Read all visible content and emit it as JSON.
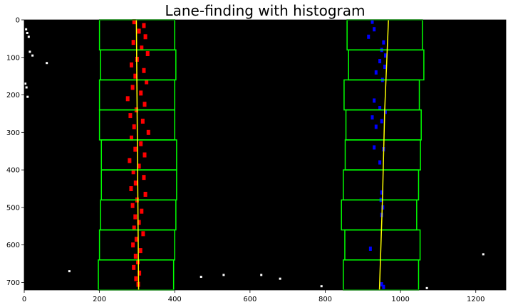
{
  "chart_data": {
    "type": "scatter",
    "title": "Lane-finding with histogram",
    "xlabel": "",
    "ylabel": "",
    "xlim": [
      0,
      1280
    ],
    "ylim": [
      720,
      0
    ],
    "y_inverted": true,
    "grid": false,
    "background_color": "#000000",
    "x_ticks": [
      0,
      200,
      400,
      600,
      800,
      1000,
      1200
    ],
    "y_ticks": [
      0,
      100,
      200,
      300,
      400,
      500,
      600,
      700
    ],
    "colors": {
      "left_lane": "#ff0000",
      "right_lane": "#0000ff",
      "windows": "#00ff00",
      "fit_line": "#ffff00",
      "noise": "#ffffff"
    },
    "windows": [
      {
        "lane": "left",
        "x0": 200,
        "x1": 400,
        "y0": 0,
        "y1": 80
      },
      {
        "lane": "left",
        "x0": 203,
        "x1": 403,
        "y0": 80,
        "y1": 160
      },
      {
        "lane": "left",
        "x0": 200,
        "x1": 400,
        "y0": 160,
        "y1": 240
      },
      {
        "lane": "left",
        "x0": 200,
        "x1": 400,
        "y0": 240,
        "y1": 320
      },
      {
        "lane": "left",
        "x0": 205,
        "x1": 405,
        "y0": 320,
        "y1": 400
      },
      {
        "lane": "left",
        "x0": 205,
        "x1": 405,
        "y0": 400,
        "y1": 480
      },
      {
        "lane": "left",
        "x0": 203,
        "x1": 403,
        "y0": 480,
        "y1": 560
      },
      {
        "lane": "left",
        "x0": 200,
        "x1": 400,
        "y0": 560,
        "y1": 640
      },
      {
        "lane": "left",
        "x0": 197,
        "x1": 397,
        "y0": 640,
        "y1": 720
      },
      {
        "lane": "right",
        "x0": 858,
        "x1": 1058,
        "y0": 0,
        "y1": 80
      },
      {
        "lane": "right",
        "x0": 862,
        "x1": 1062,
        "y0": 80,
        "y1": 160
      },
      {
        "lane": "right",
        "x0": 850,
        "x1": 1050,
        "y0": 160,
        "y1": 240
      },
      {
        "lane": "right",
        "x0": 855,
        "x1": 1055,
        "y0": 240,
        "y1": 320
      },
      {
        "lane": "right",
        "x0": 853,
        "x1": 1053,
        "y0": 320,
        "y1": 400
      },
      {
        "lane": "right",
        "x0": 848,
        "x1": 1048,
        "y0": 400,
        "y1": 480
      },
      {
        "lane": "right",
        "x0": 843,
        "x1": 1043,
        "y0": 480,
        "y1": 560
      },
      {
        "lane": "right",
        "x0": 852,
        "x1": 1052,
        "y0": 560,
        "y1": 640
      },
      {
        "lane": "right",
        "x0": 848,
        "x1": 1048,
        "y0": 640,
        "y1": 720
      }
    ],
    "fit_lines": [
      {
        "lane": "left",
        "x": [
          298,
          299,
          300,
          301,
          302,
          303,
          304
        ],
        "y": [
          0,
          120,
          240,
          360,
          480,
          600,
          720
        ]
      },
      {
        "lane": "right",
        "x": [
          968,
          963,
          958,
          955,
          952,
          948,
          944
        ],
        "y": [
          0,
          120,
          240,
          360,
          480,
          600,
          720
        ]
      }
    ],
    "left_lane_pixels": [
      {
        "x": 292,
        "y": 5
      },
      {
        "x": 318,
        "y": 15
      },
      {
        "x": 305,
        "y": 30
      },
      {
        "x": 322,
        "y": 45
      },
      {
        "x": 290,
        "y": 60
      },
      {
        "x": 312,
        "y": 75
      },
      {
        "x": 328,
        "y": 90
      },
      {
        "x": 300,
        "y": 105
      },
      {
        "x": 285,
        "y": 120
      },
      {
        "x": 318,
        "y": 135
      },
      {
        "x": 295,
        "y": 150
      },
      {
        "x": 325,
        "y": 165
      },
      {
        "x": 288,
        "y": 180
      },
      {
        "x": 310,
        "y": 195
      },
      {
        "x": 275,
        "y": 210
      },
      {
        "x": 320,
        "y": 225
      },
      {
        "x": 298,
        "y": 240
      },
      {
        "x": 282,
        "y": 255
      },
      {
        "x": 315,
        "y": 270
      },
      {
        "x": 292,
        "y": 285
      },
      {
        "x": 330,
        "y": 300
      },
      {
        "x": 285,
        "y": 315
      },
      {
        "x": 310,
        "y": 330
      },
      {
        "x": 295,
        "y": 345
      },
      {
        "x": 320,
        "y": 360
      },
      {
        "x": 280,
        "y": 375
      },
      {
        "x": 305,
        "y": 390
      },
      {
        "x": 290,
        "y": 405
      },
      {
        "x": 318,
        "y": 420
      },
      {
        "x": 296,
        "y": 435
      },
      {
        "x": 284,
        "y": 450
      },
      {
        "x": 322,
        "y": 465
      },
      {
        "x": 300,
        "y": 480
      },
      {
        "x": 288,
        "y": 495
      },
      {
        "x": 312,
        "y": 510
      },
      {
        "x": 295,
        "y": 525
      },
      {
        "x": 305,
        "y": 540
      },
      {
        "x": 292,
        "y": 555
      },
      {
        "x": 316,
        "y": 570
      },
      {
        "x": 298,
        "y": 585
      },
      {
        "x": 289,
        "y": 600
      },
      {
        "x": 309,
        "y": 615
      },
      {
        "x": 296,
        "y": 630
      },
      {
        "x": 302,
        "y": 645
      },
      {
        "x": 291,
        "y": 660
      },
      {
        "x": 306,
        "y": 675
      },
      {
        "x": 297,
        "y": 690
      },
      {
        "x": 303,
        "y": 705
      }
    ],
    "right_lane_pixels": [
      {
        "x": 925,
        "y": 5
      },
      {
        "x": 930,
        "y": 25
      },
      {
        "x": 915,
        "y": 45
      },
      {
        "x": 955,
        "y": 60
      },
      {
        "x": 950,
        "y": 80
      },
      {
        "x": 960,
        "y": 95
      },
      {
        "x": 945,
        "y": 110
      },
      {
        "x": 958,
        "y": 125
      },
      {
        "x": 935,
        "y": 140
      },
      {
        "x": 952,
        "y": 160
      },
      {
        "x": 930,
        "y": 215
      },
      {
        "x": 945,
        "y": 235
      },
      {
        "x": 960,
        "y": 245
      },
      {
        "x": 925,
        "y": 260
      },
      {
        "x": 950,
        "y": 270
      },
      {
        "x": 935,
        "y": 285
      },
      {
        "x": 930,
        "y": 340
      },
      {
        "x": 955,
        "y": 345
      },
      {
        "x": 945,
        "y": 380
      },
      {
        "x": 950,
        "y": 460
      },
      {
        "x": 948,
        "y": 480
      },
      {
        "x": 953,
        "y": 500
      },
      {
        "x": 950,
        "y": 520
      },
      {
        "x": 920,
        "y": 610
      },
      {
        "x": 950,
        "y": 705
      },
      {
        "x": 955,
        "y": 712
      }
    ],
    "noise_pixels": [
      {
        "x": 5,
        "y": 25
      },
      {
        "x": 8,
        "y": 35
      },
      {
        "x": 12,
        "y": 45
      },
      {
        "x": 15,
        "y": 85
      },
      {
        "x": 22,
        "y": 95
      },
      {
        "x": 60,
        "y": 115
      },
      {
        "x": 3,
        "y": 170
      },
      {
        "x": 6,
        "y": 180
      },
      {
        "x": 9,
        "y": 205
      },
      {
        "x": 120,
        "y": 670
      },
      {
        "x": 470,
        "y": 685
      },
      {
        "x": 530,
        "y": 680
      },
      {
        "x": 630,
        "y": 680
      },
      {
        "x": 680,
        "y": 690
      },
      {
        "x": 790,
        "y": 710
      },
      {
        "x": 1070,
        "y": 715
      },
      {
        "x": 1220,
        "y": 625
      }
    ]
  }
}
